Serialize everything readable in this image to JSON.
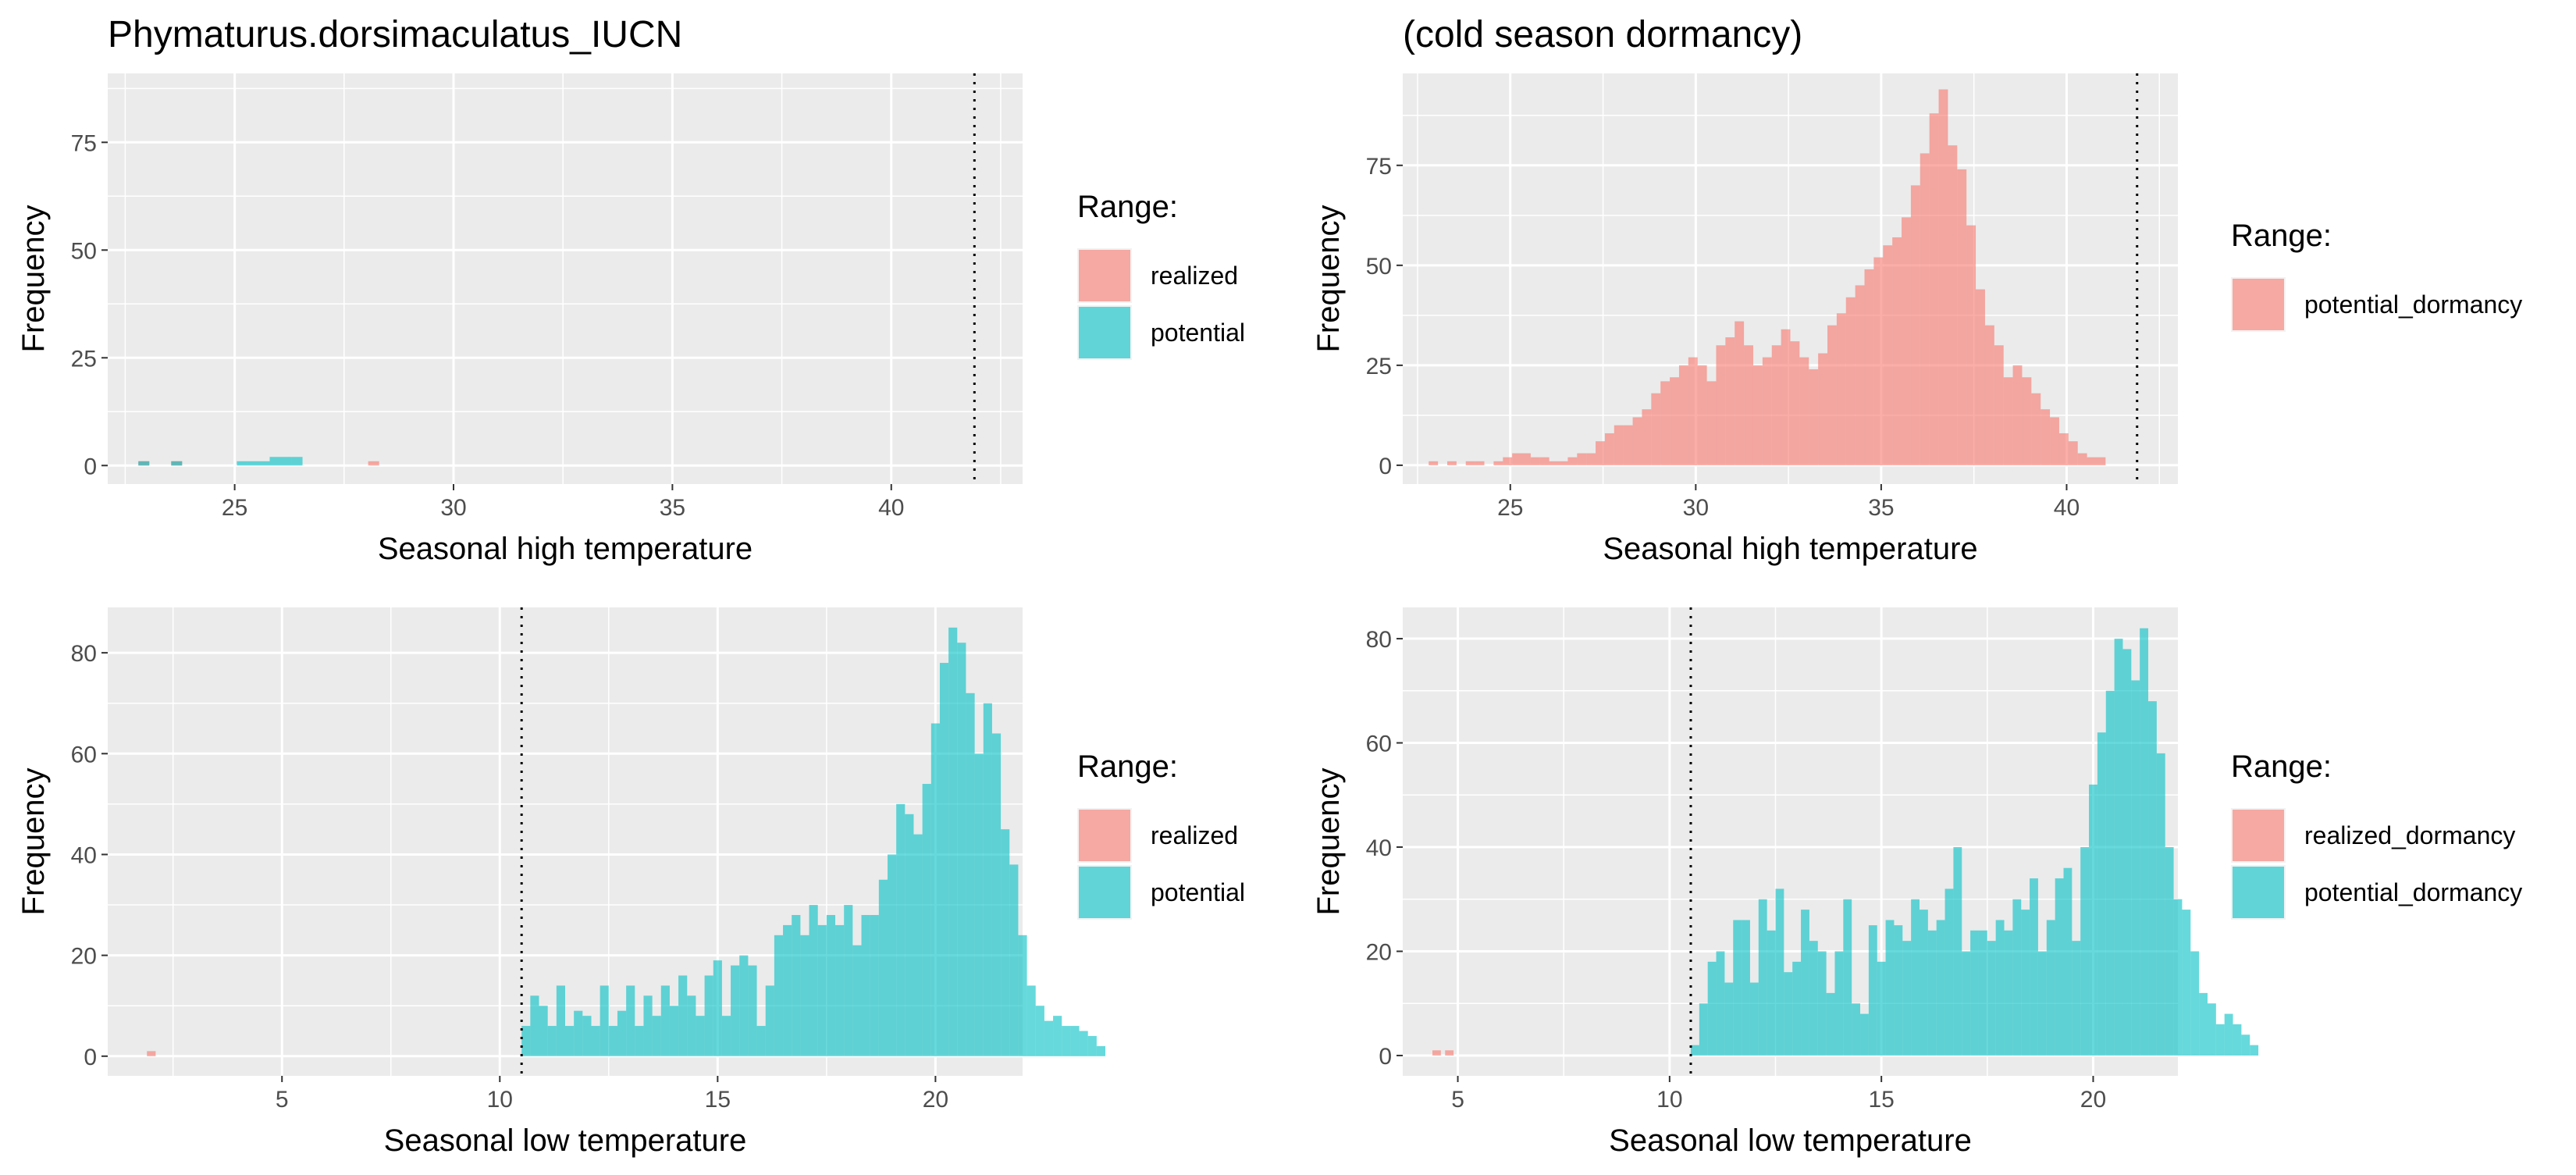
{
  "figure": {
    "title_left": "Phymaturus.dorsimaculatus_IUCN",
    "title_right": "(cold season dormancy)"
  },
  "colors": {
    "realized": "#F8766D",
    "potential": "#00BFC4",
    "panel_bg": "#EBEBEB",
    "grid": "#FFFFFF",
    "text": "#000000",
    "tick_text": "#4D4D4D"
  },
  "chart_data": [
    {
      "type": "histogram",
      "xlabel": "Seasonal high temperature",
      "ylabel": "Frequency",
      "xlim": [
        22.1,
        43.0
      ],
      "ylim": [
        -4.3,
        91
      ],
      "xticks": [
        25,
        30,
        35,
        40
      ],
      "yticks": [
        0,
        25,
        50,
        75
      ],
      "vline": 41.9,
      "bin_start": 22.8,
      "bin_width": 0.25,
      "legend": {
        "title": "Range:",
        "items": [
          {
            "label": "realized",
            "color_key": "realized"
          },
          {
            "label": "potential",
            "color_key": "potential"
          }
        ]
      },
      "series": [
        {
          "name": "realized",
          "color_key": "realized",
          "values": [
            1,
            0,
            0,
            1,
            0,
            0,
            0,
            0,
            0,
            0,
            0,
            0,
            0,
            0,
            0,
            0,
            0,
            0,
            0,
            0,
            0,
            1
          ]
        },
        {
          "name": "potential",
          "color_key": "potential",
          "values": [
            1,
            0,
            0,
            1,
            0,
            0,
            0,
            0,
            0,
            1,
            1,
            1,
            2,
            2,
            2,
            0,
            0,
            0,
            0,
            0,
            0,
            0,
            0,
            0,
            0,
            0,
            0,
            0,
            0,
            0,
            0,
            0,
            0,
            0,
            0,
            0,
            0,
            0,
            0,
            0,
            0,
            0,
            0,
            0,
            0,
            0,
            0,
            0,
            0,
            0,
            0,
            0,
            0,
            0,
            0,
            0,
            0,
            0,
            0,
            0,
            0,
            0,
            0,
            0,
            0,
            0,
            0,
            0,
            0,
            0,
            0,
            0,
            0,
            0,
            0,
            0,
            0,
            0,
            0,
            0,
            0,
            0,
            0,
            0,
            0,
            0,
            0,
            0,
            0,
            0,
            0,
            0,
            0,
            0,
            0,
            0,
            0,
            0,
            0,
            0,
            0,
            0,
            0,
            0,
            0,
            0,
            0,
            0
          ]
        }
      ]
    },
    {
      "type": "histogram",
      "xlabel": "Seasonal high temperature",
      "ylabel": "Frequency",
      "xlim": [
        22.1,
        43.0
      ],
      "ylim": [
        -4.7,
        98
      ],
      "xticks": [
        25,
        30,
        35,
        40
      ],
      "yticks": [
        0,
        25,
        50,
        75
      ],
      "vline": 41.9,
      "bin_start": 22.8,
      "bin_width": 0.25,
      "legend": {
        "title": "Range:",
        "items": [
          {
            "label": "potential_dormancy",
            "color_key": "realized"
          }
        ]
      },
      "series": [
        {
          "name": "potential_dormancy",
          "color_key": "realized",
          "values": [
            1,
            0,
            1,
            0,
            1,
            1,
            0,
            1,
            2,
            3,
            3,
            2,
            2,
            1,
            1,
            2,
            3,
            3,
            6,
            8,
            10,
            10,
            12,
            14,
            18,
            21,
            22,
            25,
            27,
            25,
            21,
            30,
            32,
            36,
            30,
            25,
            27,
            30,
            34,
            31,
            27,
            24,
            28,
            35,
            38,
            42,
            45,
            49,
            52,
            55,
            57,
            62,
            70,
            78,
            88,
            94,
            80,
            74,
            60,
            44,
            35,
            30,
            22,
            25,
            22,
            18,
            14,
            12,
            8,
            6,
            3,
            2,
            2
          ]
        }
      ]
    },
    {
      "type": "histogram",
      "xlabel": "Seasonal low temperature",
      "ylabel": "Frequency",
      "xlim": [
        1.0,
        22.0
      ],
      "ylim": [
        -3.9,
        89
      ],
      "xticks": [
        5,
        10,
        15,
        20
      ],
      "yticks": [
        0,
        20,
        40,
        60,
        80
      ],
      "vline": 10.5,
      "bin_start": 10.5,
      "bin_width": 0.2,
      "legend": {
        "title": "Range:",
        "items": [
          {
            "label": "realized",
            "color_key": "realized"
          },
          {
            "label": "potential",
            "color_key": "potential"
          }
        ]
      },
      "series": [
        {
          "name": "realized",
          "color_key": "realized",
          "x": [
            1.9
          ],
          "values": [
            1
          ]
        },
        {
          "name": "potential",
          "color_key": "potential",
          "values": [
            6,
            12,
            10,
            6,
            14,
            6,
            9,
            8,
            6,
            14,
            6,
            9,
            14,
            6,
            12,
            8,
            14,
            10,
            16,
            12,
            8,
            16,
            19,
            8,
            18,
            20,
            18,
            6,
            14,
            24,
            26,
            28,
            24,
            30,
            26,
            28,
            26,
            30,
            22,
            28,
            28,
            35,
            40,
            50,
            48,
            44,
            54,
            66,
            78,
            85,
            82,
            72,
            60,
            70,
            64,
            45,
            38,
            24,
            14,
            10,
            7,
            8,
            6,
            6,
            5,
            4,
            2
          ]
        }
      ]
    },
    {
      "type": "histogram",
      "xlabel": "Seasonal low temperature",
      "ylabel": "Frequency",
      "xlim": [
        3.7,
        22.0
      ],
      "ylim": [
        -3.9,
        86
      ],
      "xticks": [
        5,
        10,
        15,
        20
      ],
      "yticks": [
        0,
        20,
        40,
        60,
        80
      ],
      "vline": 10.5,
      "bin_start": 10.5,
      "bin_width": 0.2,
      "legend": {
        "title": "Range:",
        "items": [
          {
            "label": "realized_dormancy",
            "color_key": "realized"
          },
          {
            "label": "potential_dormancy",
            "color_key": "potential"
          }
        ]
      },
      "series": [
        {
          "name": "realized_dormancy",
          "color_key": "realized",
          "x": [
            4.4,
            4.7
          ],
          "values": [
            1,
            1
          ]
        },
        {
          "name": "potential_dormancy",
          "color_key": "potential",
          "values": [
            2,
            10,
            18,
            20,
            14,
            26,
            26,
            14,
            30,
            24,
            32,
            16,
            18,
            28,
            22,
            20,
            12,
            20,
            30,
            10,
            8,
            25,
            18,
            26,
            25,
            22,
            30,
            28,
            24,
            26,
            32,
            40,
            20,
            24,
            24,
            22,
            26,
            24,
            30,
            28,
            34,
            20,
            26,
            34,
            36,
            22,
            40,
            52,
            62,
            70,
            80,
            78,
            72,
            82,
            68,
            58,
            40,
            30,
            28,
            20,
            12,
            10,
            6,
            8,
            6,
            4,
            2
          ]
        }
      ]
    }
  ]
}
